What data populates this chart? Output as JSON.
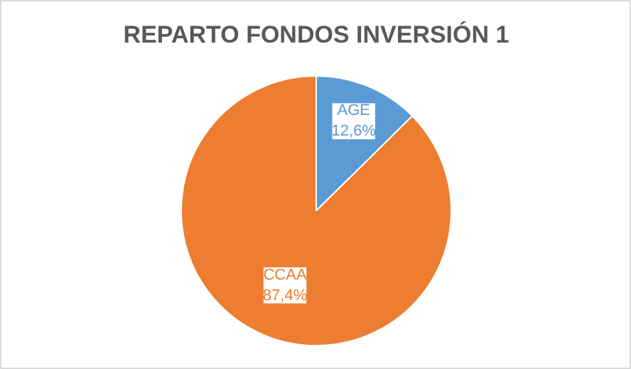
{
  "chart_data": {
    "type": "pie",
    "title": "REPARTO FONDOS INVERSIÓN 1",
    "categories": [
      "AGE",
      "CCAA"
    ],
    "values": [
      12.6,
      87.4
    ],
    "colors": [
      "#5b9bd5",
      "#ed7d31"
    ],
    "value_labels": [
      "12,6%",
      "87,4%"
    ]
  }
}
